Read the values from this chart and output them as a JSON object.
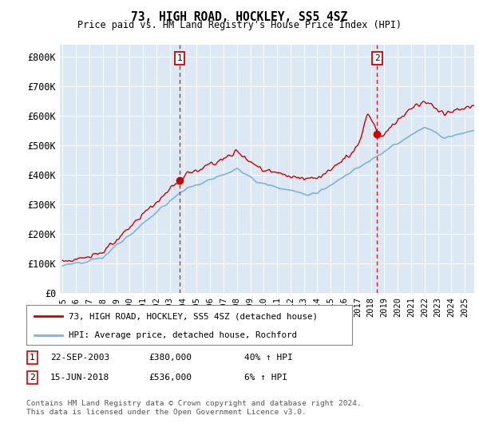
{
  "title": "73, HIGH ROAD, HOCKLEY, SS5 4SZ",
  "subtitle": "Price paid vs. HM Land Registry's House Price Index (HPI)",
  "ylabel_ticks": [
    "£0",
    "£100K",
    "£200K",
    "£300K",
    "£400K",
    "£500K",
    "£600K",
    "£700K",
    "£800K"
  ],
  "ytick_values": [
    0,
    100000,
    200000,
    300000,
    400000,
    500000,
    600000,
    700000,
    800000
  ],
  "ylim": [
    0,
    840000
  ],
  "xlim_start": 1994.8,
  "xlim_end": 2025.7,
  "bg_color": "#dce9f5",
  "red_color": "#cc0000",
  "blue_color": "#7fb3d8",
  "transaction1": {
    "date_num": 2003.72,
    "price": 380000,
    "label": "1",
    "date_str": "22-SEP-2003",
    "pct": "40% ↑ HPI"
  },
  "transaction2": {
    "date_num": 2018.46,
    "price": 536000,
    "label": "2",
    "date_str": "15-JUN-2018",
    "pct": "6% ↑ HPI"
  },
  "legend_line1": "73, HIGH ROAD, HOCKLEY, SS5 4SZ (detached house)",
  "legend_line2": "HPI: Average price, detached house, Rochford",
  "footnote": "Contains HM Land Registry data © Crown copyright and database right 2024.\nThis data is licensed under the Open Government Licence v3.0.",
  "xtick_years": [
    1995,
    1996,
    1997,
    1998,
    1999,
    2000,
    2001,
    2002,
    2003,
    2004,
    2005,
    2006,
    2007,
    2008,
    2009,
    2010,
    2011,
    2012,
    2013,
    2014,
    2015,
    2016,
    2017,
    2018,
    2019,
    2020,
    2021,
    2022,
    2023,
    2024,
    2025
  ]
}
